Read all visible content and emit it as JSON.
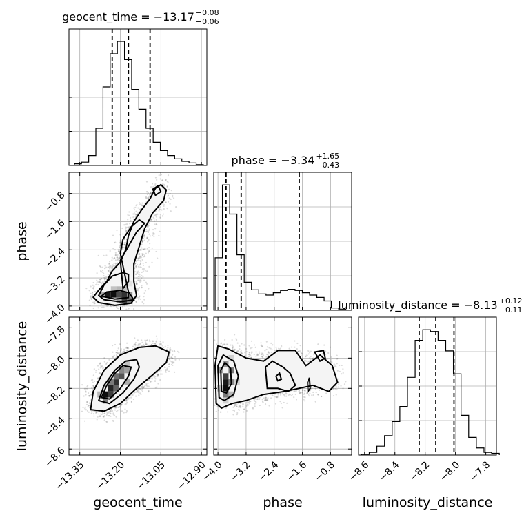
{
  "chart_data": {
    "type": "corner",
    "parameters": [
      "geocent_time",
      "phase",
      "luminosity_distance"
    ],
    "ranges": {
      "geocent_time": [
        -13.39,
        -12.88
      ],
      "phase": [
        -4.12,
        -0.2
      ],
      "luminosity_distance": [
        -8.64,
        -7.73
      ]
    },
    "ticks": {
      "geocent_time": [
        -13.35,
        -13.2,
        -13.05,
        -12.9
      ],
      "phase": [
        -4.0,
        -3.2,
        -2.4,
        -1.6,
        -0.8
      ],
      "luminosity_distance": [
        -8.6,
        -8.4,
        -8.2,
        -8.0,
        -7.8
      ]
    },
    "tick_labels": {
      "geocent_time": [
        "−13.35",
        "−13.20",
        "−13.05",
        "−12.90"
      ],
      "phase": [
        "−4.0",
        "−3.2",
        "−2.4",
        "−1.6",
        "−0.8"
      ],
      "luminosity_distance": [
        "−8.6",
        "−8.4",
        "−8.2",
        "−8.0",
        "−7.8"
      ]
    },
    "axis_labels": {
      "geocent_time": "geocent_time",
      "phase": "phase",
      "luminosity_distance": "luminosity_distance"
    },
    "titles": [
      {
        "param": "geocent_time",
        "text": "geocent_time = −13.17",
        "plus": "+0.08",
        "minus": "−0.06"
      },
      {
        "param": "phase",
        "text": "phase = −3.34",
        "plus": "+1.65",
        "minus": "−0.43"
      },
      {
        "param": "luminosity_distance",
        "text": "luminosity_distance = −8.13",
        "plus": "+0.12",
        "minus": "−0.11"
      }
    ],
    "quantiles": {
      "geocent_time": [
        -13.23,
        -13.17,
        -13.09
      ],
      "phase": [
        -3.77,
        -3.34,
        -1.69
      ],
      "luminosity_distance": [
        -8.24,
        -8.13,
        -8.01
      ]
    },
    "histograms": {
      "geocent_time": {
        "edges": [
          -13.37,
          -13.3435,
          -13.317,
          -13.2905,
          -13.264,
          -13.2375,
          -13.211,
          -13.1845,
          -13.158,
          -13.1315,
          -13.105,
          -13.0785,
          -13.052,
          -13.0255,
          -12.999,
          -12.9725,
          -12.946,
          -12.9195,
          -12.893
        ],
        "counts": [
          2,
          4,
          12,
          45,
          95,
          135,
          150,
          128,
          92,
          68,
          45,
          28,
          18,
          12,
          8,
          5,
          3,
          1
        ]
      },
      "phase": {
        "edges": [
          -4.08,
          -3.8735,
          -3.667,
          -3.4605,
          -3.254,
          -3.0475,
          -2.841,
          -2.6345,
          -2.428,
          -2.2215,
          -2.015,
          -1.8085,
          -1.602,
          -1.3955,
          -1.189,
          -0.9825,
          -0.776,
          -0.5695,
          -0.363
        ],
        "counts": [
          90,
          215,
          165,
          95,
          48,
          35,
          28,
          26,
          30,
          34,
          36,
          34,
          30,
          26,
          22,
          16,
          4,
          2
        ]
      },
      "luminosity_distance": {
        "edges": [
          -8.62,
          -8.5695,
          -8.519,
          -8.4685,
          -8.418,
          -8.3675,
          -8.317,
          -8.2665,
          -8.216,
          -8.1655,
          -8.115,
          -8.0645,
          -8.014,
          -7.9635,
          -7.913,
          -7.8625,
          -7.812,
          -7.7615,
          -7.711
        ],
        "counts": [
          1,
          3,
          10,
          22,
          38,
          55,
          88,
          130,
          142,
          140,
          130,
          118,
          92,
          45,
          20,
          8,
          3,
          2
        ]
      }
    },
    "pairs": [
      {
        "x": "geocent_time",
        "y": "phase",
        "cells": [
          {
            "x": -13.245,
            "y": -3.68,
            "v": 0.95
          },
          {
            "x": -13.225,
            "y": -3.68,
            "v": 1.0
          },
          {
            "x": -13.205,
            "y": -3.68,
            "v": 0.75
          },
          {
            "x": -13.185,
            "y": -3.68,
            "v": 0.85
          },
          {
            "x": -13.165,
            "y": -3.68,
            "v": 0.45
          },
          {
            "x": -13.265,
            "y": -3.68,
            "v": 0.35
          },
          {
            "x": -13.185,
            "y": -3.84,
            "v": 0.8
          },
          {
            "x": -13.165,
            "y": -3.84,
            "v": 0.55
          },
          {
            "x": -13.205,
            "y": -3.84,
            "v": 0.4
          },
          {
            "x": -13.225,
            "y": -3.52,
            "v": 0.25
          },
          {
            "x": -13.205,
            "y": -3.52,
            "v": 0.3
          },
          {
            "x": -13.185,
            "y": -3.52,
            "v": 0.25
          },
          {
            "x": -13.165,
            "y": -3.36,
            "v": 0.12
          },
          {
            "x": -13.185,
            "y": -3.2,
            "v": 0.1
          }
        ],
        "contours": [
          [
            [
              -13.3,
              -3.75
            ],
            [
              -13.28,
              -3.55
            ],
            [
              -13.25,
              -3.3
            ],
            [
              -13.23,
              -3.0
            ],
            [
              -13.2,
              -2.75
            ],
            [
              -13.18,
              -2.4
            ],
            [
              -13.17,
              -2.0
            ],
            [
              -13.15,
              -1.6
            ],
            [
              -13.12,
              -1.25
            ],
            [
              -13.09,
              -0.95
            ],
            [
              -13.07,
              -0.65
            ],
            [
              -13.05,
              -0.55
            ],
            [
              -13.03,
              -0.7
            ],
            [
              -13.04,
              -1.0
            ],
            [
              -13.08,
              -1.35
            ],
            [
              -13.11,
              -1.8
            ],
            [
              -13.13,
              -2.3
            ],
            [
              -13.15,
              -2.8
            ],
            [
              -13.15,
              -3.3
            ],
            [
              -13.14,
              -3.7
            ],
            [
              -13.16,
              -3.92
            ],
            [
              -13.22,
              -3.98
            ],
            [
              -13.28,
              -3.9
            ]
          ],
          [
            [
              -13.28,
              -3.7
            ],
            [
              -13.26,
              -3.4
            ],
            [
              -13.23,
              -3.15
            ],
            [
              -13.19,
              -3.05
            ],
            [
              -13.17,
              -3.1
            ],
            [
              -13.17,
              -3.3
            ],
            [
              -13.19,
              -3.5
            ],
            [
              -13.2,
              -2.7
            ],
            [
              -13.17,
              -2.3
            ],
            [
              -13.14,
              -1.9
            ],
            [
              -13.11,
              -1.65
            ],
            [
              -13.13,
              -1.55
            ],
            [
              -13.16,
              -1.75
            ],
            [
              -13.19,
              -2.1
            ],
            [
              -13.2,
              -2.5
            ],
            [
              -13.17,
              -3.6
            ],
            [
              -13.15,
              -3.82
            ],
            [
              -13.2,
              -3.88
            ],
            [
              -13.26,
              -3.82
            ]
          ],
          [
            [
              -13.27,
              -3.72
            ],
            [
              -13.25,
              -3.6
            ],
            [
              -13.2,
              -3.56
            ],
            [
              -13.17,
              -3.62
            ],
            [
              -13.17,
              -3.76
            ],
            [
              -13.22,
              -3.8
            ]
          ],
          [
            [
              -13.08,
              -0.68
            ],
            [
              -13.06,
              -0.58
            ],
            [
              -13.05,
              -0.75
            ],
            [
              -13.07,
              -0.85
            ]
          ]
        ]
      },
      {
        "x": "geocent_time",
        "y": "luminosity_distance",
        "cells": [
          {
            "x": -13.255,
            "y": -8.24,
            "v": 1.0
          },
          {
            "x": -13.235,
            "y": -8.24,
            "v": 0.8
          },
          {
            "x": -13.235,
            "y": -8.2,
            "v": 0.9
          },
          {
            "x": -13.215,
            "y": -8.2,
            "v": 0.65
          },
          {
            "x": -13.215,
            "y": -8.16,
            "v": 0.85
          },
          {
            "x": -13.235,
            "y": -8.16,
            "v": 0.55
          },
          {
            "x": -13.195,
            "y": -8.12,
            "v": 0.7
          },
          {
            "x": -13.215,
            "y": -8.12,
            "v": 0.6
          },
          {
            "x": -13.195,
            "y": -8.08,
            "v": 0.5
          },
          {
            "x": -13.175,
            "y": -8.08,
            "v": 0.4
          },
          {
            "x": -13.175,
            "y": -8.04,
            "v": 0.25
          },
          {
            "x": -13.255,
            "y": -8.28,
            "v": 0.55
          },
          {
            "x": -13.275,
            "y": -8.24,
            "v": 0.3
          },
          {
            "x": -13.175,
            "y": -8.16,
            "v": 0.35
          }
        ],
        "contours": [
          [
            [
              -13.31,
              -8.34
            ],
            [
              -13.3,
              -8.22
            ],
            [
              -13.26,
              -8.08
            ],
            [
              -13.2,
              -7.98
            ],
            [
              -13.13,
              -7.93
            ],
            [
              -13.07,
              -7.92
            ],
            [
              -13.02,
              -7.96
            ],
            [
              -13.03,
              -8.03
            ],
            [
              -13.08,
              -8.11
            ],
            [
              -13.14,
              -8.2
            ],
            [
              -13.2,
              -8.3
            ],
            [
              -13.26,
              -8.35
            ]
          ],
          [
            [
              -13.28,
              -8.28
            ],
            [
              -13.26,
              -8.18
            ],
            [
              -13.22,
              -8.08
            ],
            [
              -13.18,
              -8.02
            ],
            [
              -13.14,
              -8.01
            ],
            [
              -13.13,
              -8.06
            ],
            [
              -13.15,
              -8.14
            ],
            [
              -13.19,
              -8.23
            ],
            [
              -13.24,
              -8.3
            ]
          ],
          [
            [
              -13.27,
              -8.26
            ],
            [
              -13.25,
              -8.18
            ],
            [
              -13.22,
              -8.1
            ],
            [
              -13.19,
              -8.05
            ],
            [
              -13.16,
              -8.06
            ],
            [
              -13.17,
              -8.12
            ],
            [
              -13.2,
              -8.2
            ],
            [
              -13.24,
              -8.27
            ]
          ]
        ]
      },
      {
        "x": "phase",
        "y": "luminosity_distance",
        "cells": [
          {
            "x": -3.78,
            "y": -8.2,
            "v": 1.0
          },
          {
            "x": -3.78,
            "y": -8.16,
            "v": 0.95
          },
          {
            "x": -3.78,
            "y": -8.12,
            "v": 0.8
          },
          {
            "x": -3.62,
            "y": -8.16,
            "v": 0.5
          },
          {
            "x": -3.62,
            "y": -8.08,
            "v": 0.55
          },
          {
            "x": -3.94,
            "y": -8.08,
            "v": 0.4
          },
          {
            "x": -3.78,
            "y": -8.24,
            "v": 0.55
          },
          {
            "x": -3.62,
            "y": -8.24,
            "v": 0.3
          },
          {
            "x": -3.94,
            "y": -8.2,
            "v": 0.25
          },
          {
            "x": -3.78,
            "y": -8.04,
            "v": 0.45
          },
          {
            "x": -3.62,
            "y": -8.0,
            "v": 0.2
          },
          {
            "x": -3.46,
            "y": -8.16,
            "v": 0.2
          },
          {
            "x": -3.78,
            "y": -8.28,
            "v": 0.2
          }
        ],
        "contours": [
          [
            [
              -4.05,
              -8.3
            ],
            [
              -4.08,
              -8.05
            ],
            [
              -4.0,
              -7.92
            ],
            [
              -3.7,
              -7.94
            ],
            [
              -3.2,
              -8.0
            ],
            [
              -2.7,
              -8.02
            ],
            [
              -2.3,
              -7.95
            ],
            [
              -1.8,
              -7.95
            ],
            [
              -1.5,
              -8.05
            ],
            [
              -1.1,
              -7.98
            ],
            [
              -0.75,
              -8.05
            ],
            [
              -0.6,
              -8.16
            ],
            [
              -0.85,
              -8.22
            ],
            [
              -1.3,
              -8.18
            ],
            [
              -1.7,
              -8.2
            ],
            [
              -2.1,
              -8.22
            ],
            [
              -2.7,
              -8.24
            ],
            [
              -3.2,
              -8.28
            ],
            [
              -3.6,
              -8.3
            ],
            [
              -3.9,
              -8.33
            ]
          ],
          [
            [
              -3.97,
              -8.26
            ],
            [
              -4.0,
              -8.05
            ],
            [
              -3.85,
              -7.98
            ],
            [
              -3.55,
              -8.02
            ],
            [
              -3.42,
              -8.12
            ],
            [
              -3.55,
              -8.24
            ],
            [
              -3.82,
              -8.28
            ]
          ],
          [
            [
              -3.9,
              -8.22
            ],
            [
              -3.92,
              -8.08
            ],
            [
              -3.8,
              -8.03
            ],
            [
              -3.64,
              -8.07
            ],
            [
              -3.62,
              -8.17
            ],
            [
              -3.76,
              -8.23
            ]
          ],
          [
            [
              -2.6,
              -8.2
            ],
            [
              -2.65,
              -8.06
            ],
            [
              -2.45,
              -8.02
            ],
            [
              -2.15,
              -8.06
            ],
            [
              -1.95,
              -8.1
            ],
            [
              -1.8,
              -8.18
            ],
            [
              -2.0,
              -8.22
            ],
            [
              -2.3,
              -8.2
            ]
          ],
          [
            [
              -1.1,
              -8.02
            ],
            [
              -1.25,
              -7.96
            ],
            [
              -1.0,
              -7.95
            ],
            [
              -0.95,
              -8.0
            ]
          ],
          [
            [
              -2.35,
              -8.12
            ],
            [
              -2.25,
              -8.1
            ],
            [
              -2.2,
              -8.14
            ],
            [
              -2.3,
              -8.15
            ]
          ],
          [
            [
              -1.45,
              -8.16
            ],
            [
              -1.4,
              -8.13
            ],
            [
              -1.38,
              -8.2
            ],
            [
              -1.44,
              -8.22
            ]
          ]
        ]
      }
    ],
    "grid": true
  }
}
